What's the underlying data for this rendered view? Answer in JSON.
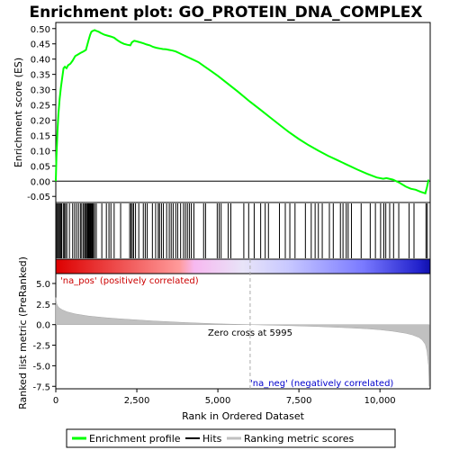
{
  "chart_data": {
    "type": "line",
    "title": "Enrichment plot: GO_PROTEIN_DNA_COMPLEX",
    "es_panel": {
      "ylabel": "Enrichment score (ES)",
      "ylim": [
        -0.07,
        0.52
      ],
      "yticks": [
        -0.05,
        0.0,
        0.05,
        0.1,
        0.15,
        0.2,
        0.25,
        0.3,
        0.35,
        0.4,
        0.45,
        0.5
      ],
      "ytick_labels": [
        "-0.05",
        "0.00",
        "0.05",
        "0.10",
        "0.15",
        "0.20",
        "0.25",
        "0.30",
        "0.35",
        "0.40",
        "0.45",
        "0.50"
      ],
      "series": [
        {
          "name": "Enrichment profile",
          "color": "#00ff00",
          "x": [
            0,
            20,
            50,
            80,
            120,
            160,
            200,
            240,
            280,
            330,
            380,
            450,
            520,
            600,
            680,
            760,
            850,
            930,
            980,
            1020,
            1060,
            1100,
            1150,
            1200,
            1260,
            1320,
            1400,
            1500,
            1600,
            1700,
            1800,
            1900,
            2000,
            2100,
            2200,
            2300,
            2350,
            2420,
            2500,
            2600,
            2700,
            2800,
            2900,
            3000,
            3100,
            3200,
            3300,
            3400,
            3500,
            3600,
            3700,
            3800,
            3900,
            4000,
            4100,
            4200,
            4300,
            4400,
            4600,
            4800,
            5000,
            5300,
            5600,
            5995,
            6300,
            6600,
            6900,
            7200,
            7500,
            7800,
            8100,
            8400,
            8700,
            9000,
            9300,
            9600,
            9900,
            10100,
            10200,
            10400,
            10600,
            10800,
            10950,
            11100,
            11250,
            11400,
            11450,
            11500
          ],
          "values": [
            0.0,
            0.08,
            0.16,
            0.22,
            0.27,
            0.31,
            0.34,
            0.37,
            0.375,
            0.37,
            0.38,
            0.385,
            0.395,
            0.41,
            0.415,
            0.42,
            0.425,
            0.43,
            0.45,
            0.465,
            0.48,
            0.49,
            0.493,
            0.495,
            0.492,
            0.49,
            0.485,
            0.48,
            0.477,
            0.474,
            0.47,
            0.462,
            0.455,
            0.45,
            0.447,
            0.445,
            0.455,
            0.46,
            0.458,
            0.455,
            0.452,
            0.448,
            0.445,
            0.44,
            0.437,
            0.435,
            0.433,
            0.432,
            0.43,
            0.428,
            0.425,
            0.42,
            0.415,
            0.41,
            0.405,
            0.4,
            0.395,
            0.39,
            0.375,
            0.36,
            0.345,
            0.32,
            0.295,
            0.26,
            0.235,
            0.21,
            0.185,
            0.16,
            0.138,
            0.118,
            0.1,
            0.083,
            0.068,
            0.053,
            0.038,
            0.024,
            0.012,
            0.008,
            0.01,
            0.005,
            -0.005,
            -0.018,
            -0.025,
            -0.028,
            -0.035,
            -0.04,
            -0.02,
            0.005
          ]
        }
      ]
    },
    "hits_panel": {
      "legend_label": "Hits",
      "hit_positions": [
        30,
        60,
        90,
        120,
        150,
        180,
        230,
        260,
        300,
        340,
        420,
        520,
        580,
        640,
        700,
        760,
        800,
        850,
        890,
        920,
        950,
        980,
        1000,
        1020,
        1040,
        1060,
        1080,
        1100,
        1120,
        1140,
        1160,
        1200,
        1250,
        1420,
        1560,
        1640,
        1700,
        1800,
        2000,
        2280,
        2320,
        2360,
        2400,
        2460,
        2560,
        2700,
        2760,
        2820,
        2980,
        3080,
        3160,
        3200,
        3260,
        3320,
        3420,
        3500,
        3560,
        3620,
        3700,
        3760,
        3850,
        3940,
        4000,
        4060,
        4120,
        4180,
        4260,
        4560,
        4620,
        4980,
        5040,
        5100,
        5320,
        5400,
        5800,
        5950,
        6120,
        6320,
        6460,
        6560,
        6900,
        7080,
        7220,
        7380,
        7700,
        7880,
        8000,
        8100,
        8220,
        8440,
        8560,
        8780,
        8860,
        8960,
        9020,
        9120,
        9420,
        9700,
        9860,
        10020,
        10120,
        10180,
        10300,
        10420,
        10580,
        10900,
        11050,
        11420,
        11460
      ]
    },
    "metric_panel": {
      "ylabel": "Ranked list metric (PreRanked)",
      "ylim": [
        -7.8,
        6.2
      ],
      "yticks": [
        -7.5,
        -5.0,
        -2.5,
        0.0,
        2.5,
        5.0
      ],
      "ytick_labels": [
        "-7.5",
        "-5.0",
        "-2.5",
        "0.0",
        "2.5",
        "5.0"
      ],
      "series_name": "Ranking metric scores",
      "color": "#c0c0c0",
      "x": [
        0,
        10,
        30,
        60,
        100,
        200,
        350,
        600,
        1000,
        1500,
        2000,
        3000,
        4000,
        5000,
        5995,
        7000,
        8000,
        9000,
        9600,
        10000,
        10400,
        10800,
        11000,
        11200,
        11300,
        11400,
        11450,
        11500,
        11520
      ],
      "values": [
        3.3,
        2.9,
        2.5,
        2.25,
        2.05,
        1.8,
        1.55,
        1.3,
        1.05,
        0.85,
        0.7,
        0.45,
        0.25,
        0.1,
        0.0,
        -0.1,
        -0.22,
        -0.38,
        -0.5,
        -0.62,
        -0.8,
        -1.05,
        -1.25,
        -1.55,
        -1.85,
        -2.4,
        -3.2,
        -5.0,
        -7.5
      ],
      "zero_cross_label": "Zero cross at 5995",
      "zero_cross": 5995,
      "pos_label": "'na_pos' (positively correlated)",
      "neg_label": "'na_neg' (negatively correlated)"
    },
    "xaxis": {
      "label": "Rank in Ordered Dataset",
      "xlim": [
        0,
        11550
      ],
      "xticks": [
        0,
        2500,
        5000,
        7500,
        10000
      ],
      "xtick_labels": [
        "0",
        "2,500",
        "5,000",
        "7,500",
        "10,000"
      ]
    },
    "legend": {
      "placement": "bottom",
      "entries": [
        {
          "label": "Enrichment profile",
          "color": "#00ff00"
        },
        {
          "label": "Hits",
          "color": "#000000"
        },
        {
          "label": "Ranking metric scores",
          "color": "#c0c0c0"
        }
      ]
    },
    "colors": {
      "pos_text": "#cc0000",
      "neg_text": "#0000cc"
    }
  }
}
